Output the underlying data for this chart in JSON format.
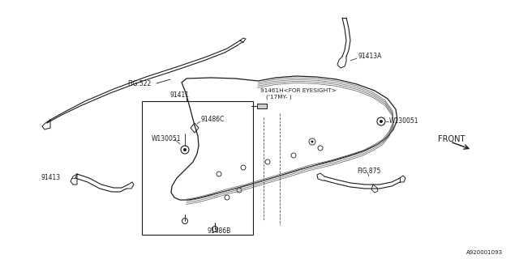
{
  "bg_color": "#ffffff",
  "line_color": "#1a1a1a",
  "text_color": "#1a1a1a",
  "labels": {
    "fig522": "FIG.522",
    "91413a": "91413A",
    "91461h": "91461H<FOR EYESIGHT>",
    "17my": "('17MY- )",
    "w130051_right": "W130051",
    "front": "FRONT",
    "91411": "91411",
    "91486c": "91486C",
    "w130051_left": "W130051",
    "91413": "91413",
    "fig875": "FIG.875",
    "91486b": "91486B",
    "ref_num": "A920001093"
  },
  "figsize": [
    6.4,
    3.2
  ],
  "dpi": 100
}
